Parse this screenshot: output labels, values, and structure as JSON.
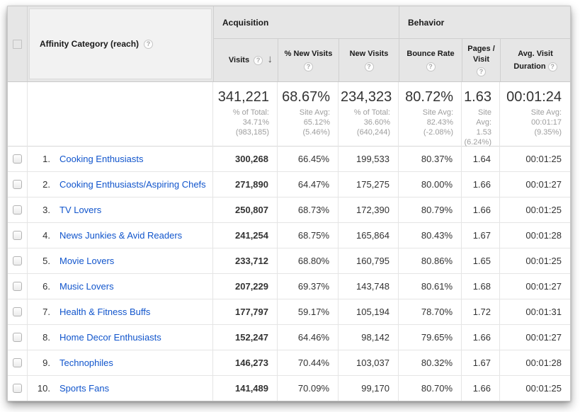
{
  "colors": {
    "link_blue": "#1155cc",
    "header_gray": "#e6e6e6",
    "subtext_gray": "#9e9e9e"
  },
  "icons": {
    "help": "?",
    "sort_desc": "↓"
  },
  "table": {
    "dimension_header": {
      "label": "Affinity Category (reach)"
    },
    "groups": {
      "acquisition": "Acquisition",
      "behavior": "Behavior"
    },
    "columns": [
      {
        "label": "Visits"
      },
      {
        "label": "% New Visits"
      },
      {
        "label": "New Visits"
      },
      {
        "label": "Bounce Rate"
      },
      {
        "label": "Pages / Visit"
      },
      {
        "label": "Avg. Visit Duration"
      }
    ],
    "summary": {
      "visits": {
        "value": "341,221",
        "sub": "% of Total:\n34.71%\n(983,185)"
      },
      "pct_new_visits": {
        "value": "68.67%",
        "sub": "Site Avg:\n65.12%\n(5.46%)"
      },
      "new_visits": {
        "value": "234,323",
        "sub": "% of Total:\n36.60%\n(640,244)"
      },
      "bounce_rate": {
        "value": "80.72%",
        "sub": "Site Avg:\n82.43%\n(-2.08%)"
      },
      "pages_per_visit": {
        "value": "1.63",
        "sub": "Site\nAvg:\n1.53\n(6.24%)"
      },
      "avg_visit_duration": {
        "value": "00:01:24",
        "sub": "Site Avg:\n00:01:17\n(9.35%)"
      }
    },
    "rows": [
      {
        "index": "1.",
        "category": "Cooking Enthusiasts",
        "visits": "300,268",
        "pct_new_visits": "66.45%",
        "new_visits": "199,533",
        "bounce_rate": "80.37%",
        "pages_per_visit": "1.64",
        "avg_visit_duration": "00:01:25"
      },
      {
        "index": "2.",
        "category": "Cooking Enthusiasts/Aspiring Chefs",
        "visits": "271,890",
        "pct_new_visits": "64.47%",
        "new_visits": "175,275",
        "bounce_rate": "80.00%",
        "pages_per_visit": "1.66",
        "avg_visit_duration": "00:01:27"
      },
      {
        "index": "3.",
        "category": "TV Lovers",
        "visits": "250,807",
        "pct_new_visits": "68.73%",
        "new_visits": "172,390",
        "bounce_rate": "80.79%",
        "pages_per_visit": "1.66",
        "avg_visit_duration": "00:01:25"
      },
      {
        "index": "4.",
        "category": "News Junkies & Avid Readers",
        "visits": "241,254",
        "pct_new_visits": "68.75%",
        "new_visits": "165,864",
        "bounce_rate": "80.43%",
        "pages_per_visit": "1.67",
        "avg_visit_duration": "00:01:28"
      },
      {
        "index": "5.",
        "category": "Movie Lovers",
        "visits": "233,712",
        "pct_new_visits": "68.80%",
        "new_visits": "160,795",
        "bounce_rate": "80.86%",
        "pages_per_visit": "1.65",
        "avg_visit_duration": "00:01:25"
      },
      {
        "index": "6.",
        "category": "Music Lovers",
        "visits": "207,229",
        "pct_new_visits": "69.37%",
        "new_visits": "143,748",
        "bounce_rate": "80.61%",
        "pages_per_visit": "1.68",
        "avg_visit_duration": "00:01:27"
      },
      {
        "index": "7.",
        "category": "Health & Fitness Buffs",
        "visits": "177,797",
        "pct_new_visits": "59.17%",
        "new_visits": "105,194",
        "bounce_rate": "78.70%",
        "pages_per_visit": "1.72",
        "avg_visit_duration": "00:01:31"
      },
      {
        "index": "8.",
        "category": "Home Decor Enthusiasts",
        "visits": "152,247",
        "pct_new_visits": "64.46%",
        "new_visits": "98,142",
        "bounce_rate": "79.65%",
        "pages_per_visit": "1.66",
        "avg_visit_duration": "00:01:27"
      },
      {
        "index": "9.",
        "category": "Technophiles",
        "visits": "146,273",
        "pct_new_visits": "70.44%",
        "new_visits": "103,037",
        "bounce_rate": "80.32%",
        "pages_per_visit": "1.67",
        "avg_visit_duration": "00:01:28"
      },
      {
        "index": "10.",
        "category": "Sports Fans",
        "visits": "141,489",
        "pct_new_visits": "70.09%",
        "new_visits": "99,170",
        "bounce_rate": "80.70%",
        "pages_per_visit": "1.66",
        "avg_visit_duration": "00:01:25"
      }
    ]
  }
}
